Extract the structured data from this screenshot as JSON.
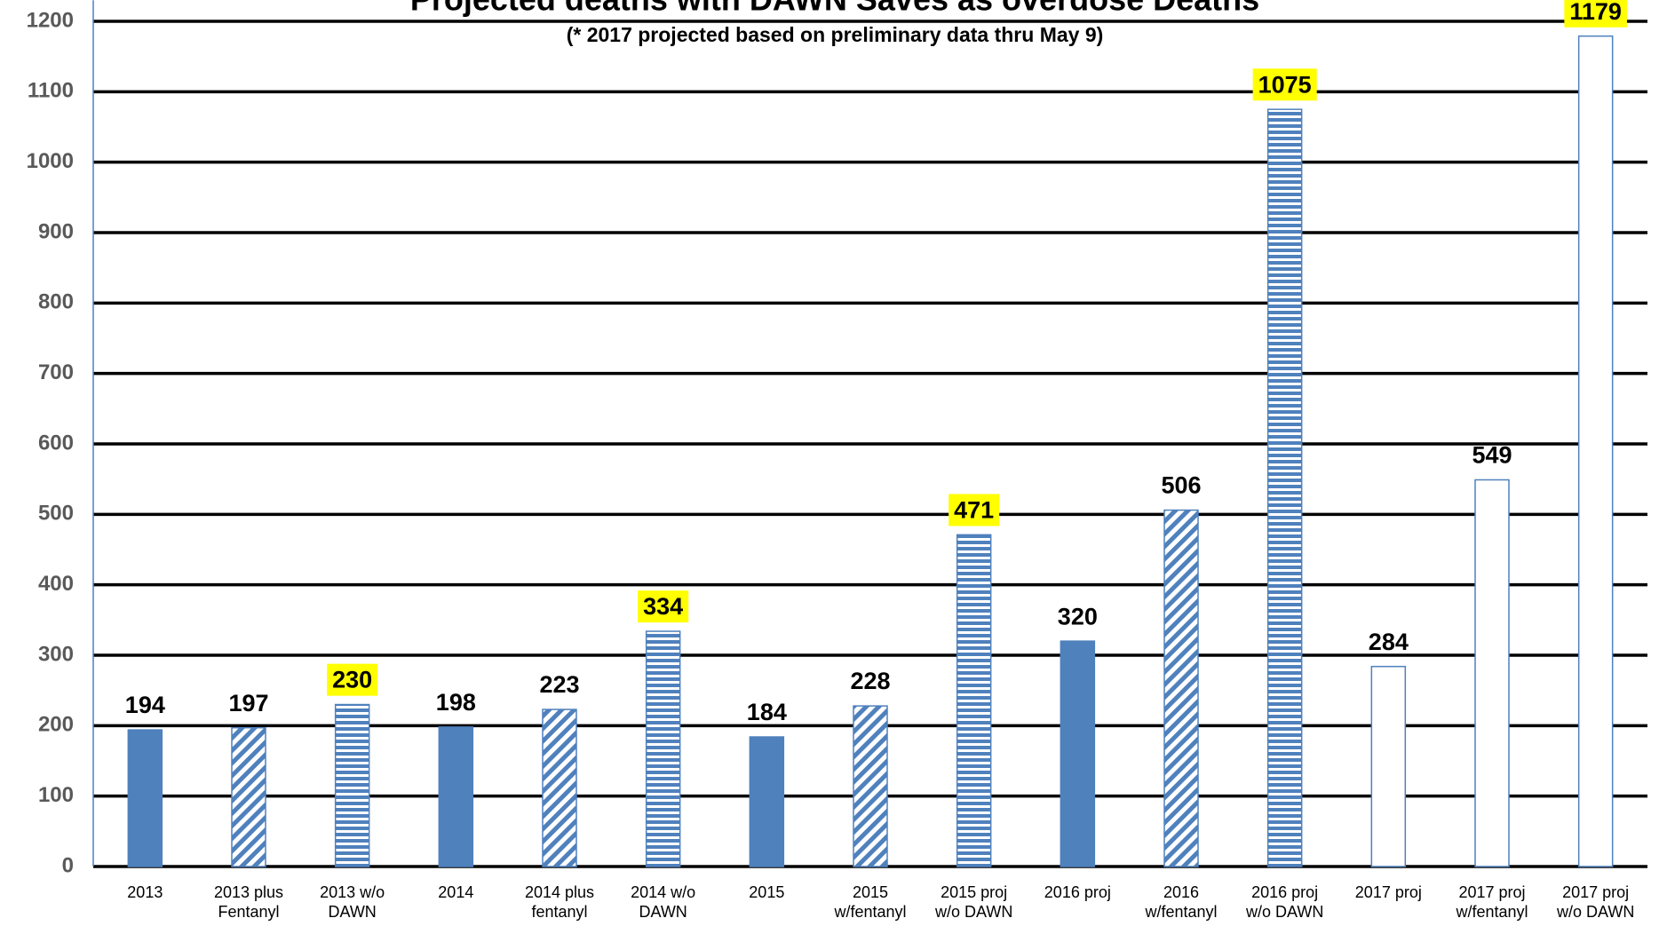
{
  "chart_data": {
    "type": "bar",
    "title": "Projected deaths with DAWN Saves as overdose Deaths",
    "subtitle": "(* 2017 projected based on preliminary data thru May 9)",
    "categories": [
      "2013",
      "2013 plus\nFentanyl",
      "2013 w/o\nDAWN",
      "2014",
      "2014 plus\nfentanyl",
      "2014 w/o\nDAWN",
      "2015",
      "2015\nw/fentanyl",
      "2015 proj\nw/o DAWN",
      "2016 proj",
      "2016\nw/fentanyl",
      "2016 proj\nw/o DAWN",
      "2017 proj",
      "2017 proj\nw/fentanyl",
      "2017 proj\nw/o DAWN"
    ],
    "values": [
      194,
      197,
      230,
      198,
      223,
      334,
      184,
      228,
      471,
      320,
      506,
      1075,
      284,
      549,
      1179
    ],
    "patterns": [
      "solid",
      "diagonal",
      "horizontal",
      "solid",
      "diagonal",
      "horizontal",
      "solid",
      "diagonal",
      "horizontal",
      "solid",
      "diagonal",
      "horizontal",
      "outline",
      "outline",
      "outline"
    ],
    "highlighted": [
      false,
      false,
      true,
      false,
      false,
      true,
      false,
      false,
      true,
      false,
      false,
      true,
      false,
      false,
      true
    ],
    "color": "#4f81bd",
    "highlight_color": "#ffff00",
    "ylim": [
      0,
      1230
    ],
    "yticks": [
      0,
      100,
      200,
      300,
      400,
      500,
      600,
      700,
      800,
      900,
      1000,
      1100,
      1200
    ],
    "grid": true
  }
}
